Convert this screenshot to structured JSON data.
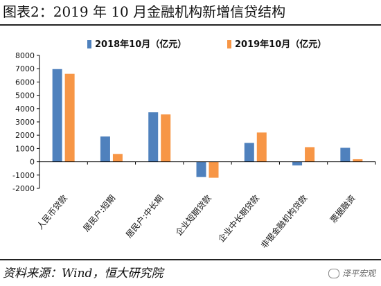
{
  "header": {
    "title": "图表2：2019 年 10 月金融机构新增信贷结构"
  },
  "footer": {
    "source": "资料来源：Wind，恒大研究院",
    "watermark": "泽平宏观"
  },
  "colors": {
    "series_2018": "#4f81bd",
    "series_2019": "#f79646",
    "axis": "#000000"
  },
  "chart_data": {
    "type": "bar",
    "categories": [
      "人民币贷款",
      "居民户:短期",
      "居民户:中长期",
      "企业短期贷款",
      "企业中长期贷款",
      "非银金融机构贷款",
      "票据融资"
    ],
    "series": [
      {
        "name": "2018年10月（亿元）",
        "values": [
          6970,
          1900,
          3720,
          -1150,
          1420,
          -270,
          1050
        ]
      },
      {
        "name": "2019年10月（亿元）",
        "values": [
          6613,
          590,
          3560,
          -1200,
          2200,
          1100,
          190
        ]
      }
    ],
    "yticks": [
      8000,
      7000,
      6000,
      5000,
      4000,
      3000,
      2000,
      1000,
      0,
      -1000,
      -2000
    ],
    "ylim": [
      -2000,
      8000
    ],
    "legend_position": "top",
    "grid": false
  }
}
